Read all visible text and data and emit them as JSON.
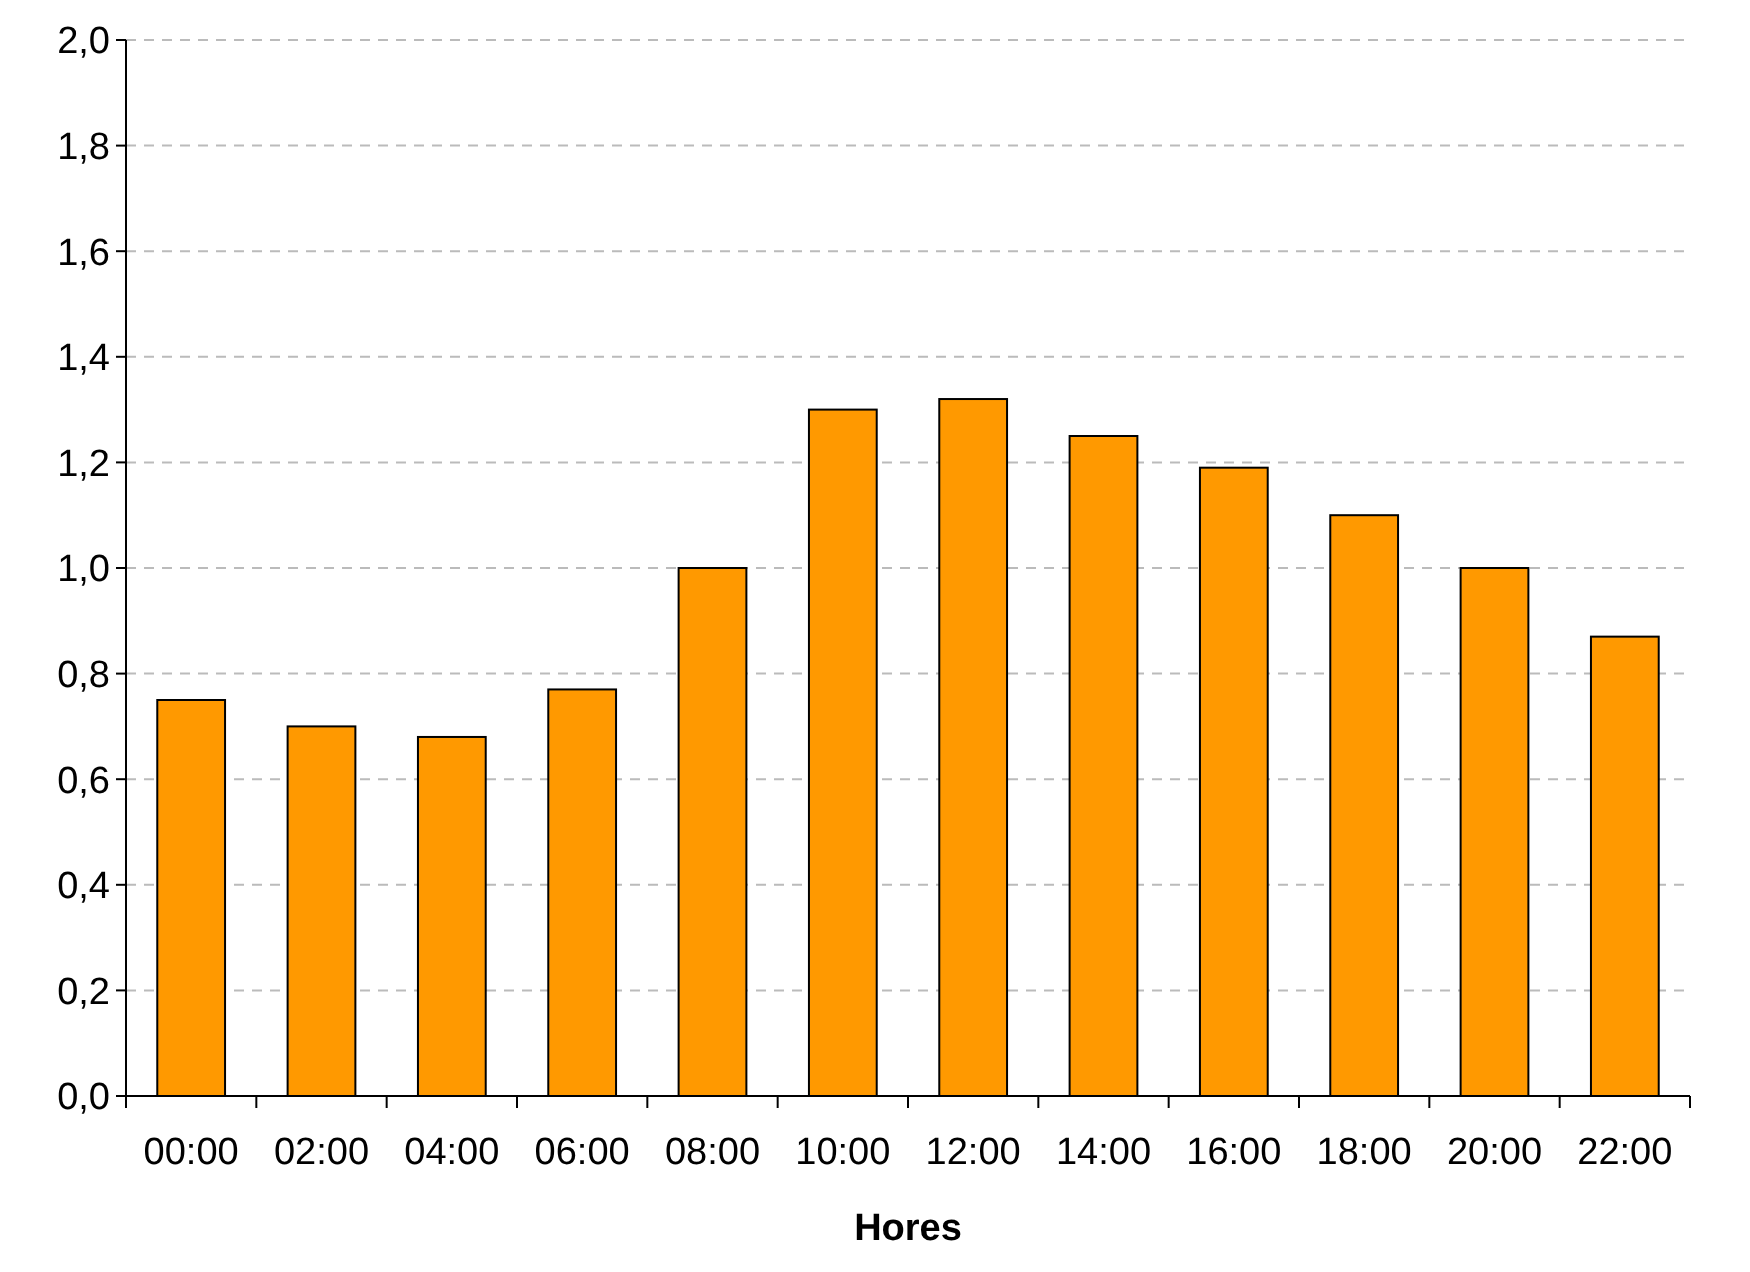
{
  "chart_data": {
    "type": "bar",
    "xlabel": "Hores",
    "categories": [
      "00:00",
      "02:00",
      "04:00",
      "06:00",
      "08:00",
      "10:00",
      "12:00",
      "14:00",
      "16:00",
      "18:00",
      "20:00",
      "22:00"
    ],
    "values": [
      0.75,
      0.7,
      0.68,
      0.77,
      1.0,
      1.3,
      1.32,
      1.25,
      1.19,
      1.1,
      1.0,
      0.87
    ],
    "color": "#ff9900",
    "ylim": [
      0,
      2
    ],
    "yticks": [
      {
        "value": 0,
        "label": "0,0"
      },
      {
        "value": 0.2,
        "label": "0,2"
      },
      {
        "value": 0.4,
        "label": "0,4"
      },
      {
        "value": 0.6,
        "label": "0,6"
      },
      {
        "value": 0.8,
        "label": "0,8"
      },
      {
        "value": 1,
        "label": "1,0"
      },
      {
        "value": 1.2,
        "label": "1,2"
      },
      {
        "value": 1.4,
        "label": "1,4"
      },
      {
        "value": 1.6,
        "label": "1,6"
      },
      {
        "value": 1.8,
        "label": "1,8"
      },
      {
        "value": 2,
        "label": "2,0"
      }
    ],
    "grid": "y"
  }
}
